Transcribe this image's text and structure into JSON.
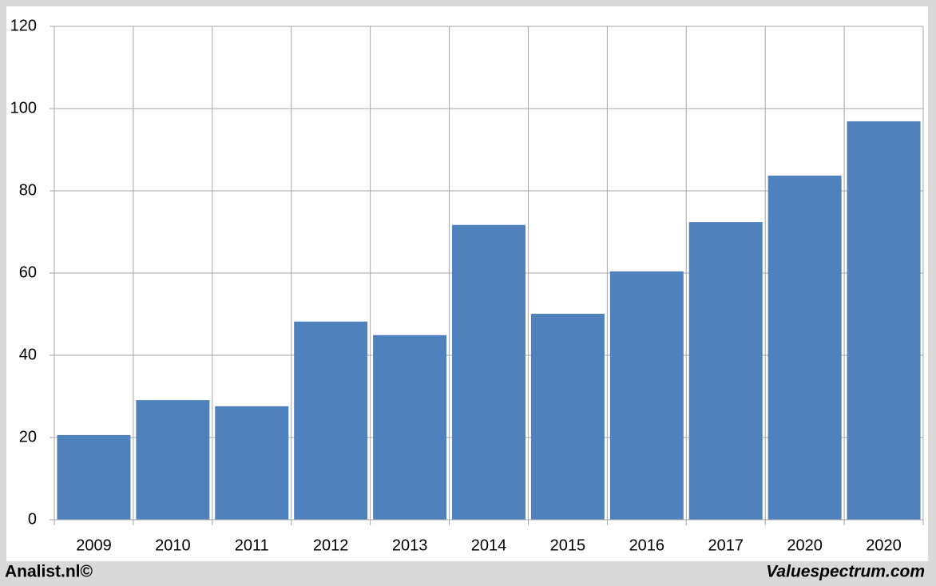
{
  "chart_data": {
    "type": "bar",
    "categories": [
      "2009",
      "2010",
      "2011",
      "2012",
      "2013",
      "2014",
      "2015",
      "2016",
      "2017",
      "2020",
      "2020"
    ],
    "values": [
      20.6,
      29.1,
      27.6,
      48.2,
      44.9,
      71.7,
      50.1,
      60.4,
      72.4,
      83.7,
      96.9
    ],
    "color": "#4f81bd",
    "ylim": [
      0,
      120
    ],
    "yticks": [
      0,
      20,
      40,
      60,
      80,
      100,
      120
    ],
    "grid": true
  },
  "footer": {
    "left": "Analist.nl©",
    "right": "Valuespectrum.com"
  }
}
